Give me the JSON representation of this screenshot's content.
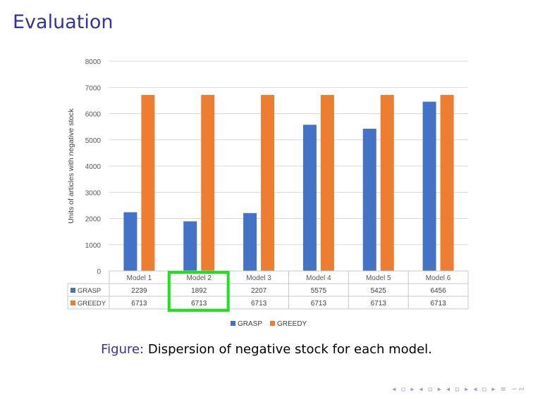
{
  "slide": {
    "title": "Evaluation",
    "caption_label": "Figure:",
    "caption_text": "Dispersion of negative stock for each model.",
    "nav_symbols": "◂ ▫ ▸ ◂ ▫ ▸ ◂ ▫ ▸ ◂ ▫ ▸ ≡ ∽∾"
  },
  "chart_data": {
    "type": "bar",
    "title": "",
    "xlabel": "",
    "ylabel": "Units of articles with negative stock",
    "ylim": [
      0,
      8000
    ],
    "yticks": [
      0,
      1000,
      2000,
      3000,
      4000,
      5000,
      6000,
      7000,
      8000
    ],
    "grid": true,
    "legend_position": "bottom",
    "categories": [
      "Model 1",
      "Model 2",
      "Model 3",
      "Model 4",
      "Model 5",
      "Model 6"
    ],
    "series": [
      {
        "name": "GRASP",
        "color": "#4472c4",
        "values": [
          2239,
          1892,
          2207,
          5575,
          5425,
          6456
        ]
      },
      {
        "name": "GREEDY",
        "color": "#ed7d31",
        "values": [
          6713,
          6713,
          6713,
          6713,
          6713,
          6713
        ]
      }
    ],
    "data_table": true,
    "highlight": {
      "series": "GRASP",
      "category": "Model 2",
      "color": "#1ee21e"
    }
  }
}
